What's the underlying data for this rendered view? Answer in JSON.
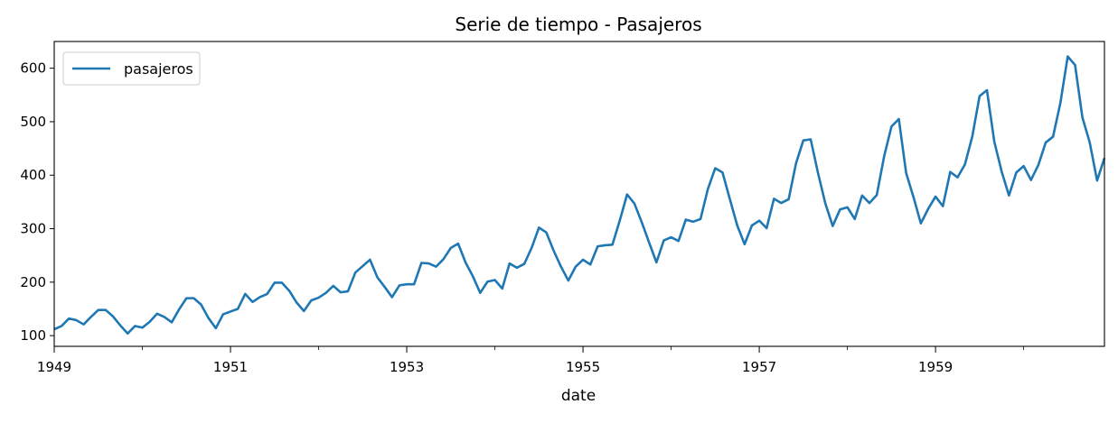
{
  "chart_data": {
    "type": "line",
    "title": "Serie de tiempo - Pasajeros",
    "xlabel": "date",
    "ylabel": "",
    "xlim": [
      "1949-01",
      "1960-12"
    ],
    "ylim": [
      80,
      650
    ],
    "x_tick_labels": [
      "1949",
      "1951",
      "1953",
      "1955",
      "1957",
      "1959"
    ],
    "y_tick_values": [
      100,
      200,
      300,
      400,
      500,
      600
    ],
    "grid": false,
    "legend_position": "top-left",
    "series": [
      {
        "name": "pasajeros",
        "color": "#1f77b4",
        "start": "1949-01",
        "frequency": "monthly",
        "values": [
          112,
          118,
          132,
          129,
          121,
          135,
          148,
          148,
          136,
          119,
          104,
          118,
          115,
          126,
          141,
          135,
          125,
          149,
          170,
          170,
          158,
          133,
          114,
          140,
          145,
          150,
          178,
          163,
          172,
          178,
          199,
          199,
          184,
          162,
          146,
          166,
          171,
          180,
          193,
          181,
          183,
          218,
          230,
          242,
          209,
          191,
          172,
          194,
          196,
          196,
          236,
          235,
          229,
          243,
          264,
          272,
          237,
          211,
          180,
          201,
          204,
          188,
          235,
          227,
          234,
          264,
          302,
          293,
          259,
          229,
          203,
          229,
          242,
          233,
          267,
          269,
          270,
          315,
          364,
          347,
          312,
          274,
          237,
          278,
          284,
          277,
          317,
          313,
          318,
          374,
          413,
          405,
          355,
          306,
          271,
          306,
          315,
          301,
          356,
          348,
          355,
          422,
          465,
          467,
          404,
          347,
          305,
          336,
          340,
          318,
          362,
          348,
          363,
          435,
          491,
          505,
          404,
          359,
          310,
          337,
          360,
          342,
          406,
          396,
          420,
          472,
          548,
          559,
          463,
          407,
          362,
          405,
          417,
          391,
          419,
          461,
          472,
          535,
          622,
          606,
          508,
          461,
          390,
          432
        ]
      }
    ]
  }
}
